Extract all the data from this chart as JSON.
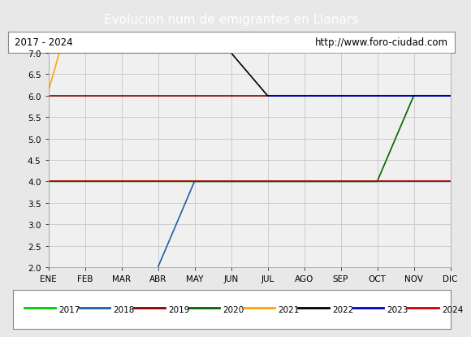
{
  "title": "Evolucion num de emigrantes en Llanars",
  "subtitle_left": "2017 - 2024",
  "subtitle_right": "http://www.foro-ciudad.com",
  "bg_color": "#e8e8e8",
  "title_bg_color": "#4a7fd4",
  "title_text_color": "#ffffff",
  "box_bg_color": "#ffffff",
  "plot_bg_color": "#f0f0f0",
  "grid_color": "#cccccc",
  "ylim": [
    2.0,
    7.0
  ],
  "yticks": [
    2.0,
    2.5,
    3.0,
    3.5,
    4.0,
    4.5,
    5.0,
    5.5,
    6.0,
    6.5,
    7.0
  ],
  "months": [
    "ENE",
    "FEB",
    "MAR",
    "ABR",
    "MAY",
    "JUN",
    "JUL",
    "AGO",
    "SEP",
    "OCT",
    "NOV",
    "DIC"
  ],
  "series": [
    {
      "label": "2017",
      "color": "#00cc00",
      "points": [
        [
          0,
          4.0
        ],
        [
          11,
          4.0
        ]
      ]
    },
    {
      "label": "2018",
      "color": "#1f5fa6",
      "points": [
        [
          3,
          2.0
        ],
        [
          4,
          4.0
        ],
        [
          11,
          4.0
        ]
      ]
    },
    {
      "label": "2019",
      "color": "#8b0000",
      "points": [
        [
          0,
          6.0
        ],
        [
          11,
          6.0
        ]
      ]
    },
    {
      "label": "2020",
      "color": "#006400",
      "points": [
        [
          0,
          4.0
        ],
        [
          9,
          4.0
        ],
        [
          10,
          6.0
        ],
        [
          11,
          6.0
        ]
      ]
    },
    {
      "label": "2021",
      "color": "#ffa500",
      "points": [
        [
          0,
          6.1
        ],
        [
          0.3,
          7.0
        ],
        [
          11,
          7.0
        ]
      ]
    },
    {
      "label": "2022",
      "color": "#000000",
      "points": [
        [
          0,
          7.0
        ],
        [
          5,
          7.0
        ],
        [
          6,
          6.0
        ],
        [
          11,
          6.0
        ]
      ]
    },
    {
      "label": "2023",
      "color": "#0000cd",
      "points": [
        [
          6,
          6.0
        ],
        [
          11,
          6.0
        ]
      ]
    },
    {
      "label": "2024",
      "color": "#cc0000",
      "points": [
        [
          0,
          4.0
        ],
        [
          11,
          4.0
        ]
      ]
    }
  ]
}
